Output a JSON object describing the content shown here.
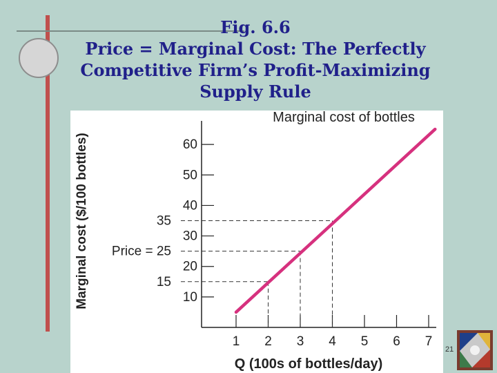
{
  "slide": {
    "title_lines": [
      "Fig. 6.6",
      "Price = Marginal Cost: The Perfectly",
      "Competitive Firm’s Profit-Maximizing",
      "Supply Rule"
    ],
    "page_number": "21"
  },
  "chart_data": {
    "type": "line",
    "title": "",
    "xlabel": "Q (100s of bottles/day)",
    "ylabel": "Marginal cost ($/100 bottles)",
    "x_ticks": [
      "1",
      "2",
      "3",
      "4",
      "5",
      "6",
      "7"
    ],
    "y_ticks": [
      "10",
      "20",
      "30",
      "40",
      "50",
      "60"
    ],
    "xlim": [
      0.3,
      7.3
    ],
    "ylim": [
      0,
      70
    ],
    "series": [
      {
        "name": "Marginal cost of bottles",
        "x": [
          1,
          7.2
        ],
        "y": [
          5,
          65
        ],
        "color": "#d6317e"
      }
    ],
    "annotations": [
      {
        "label": "35",
        "y": 35,
        "x": 4
      },
      {
        "label": "Price = 25",
        "y": 25,
        "x": 3
      },
      {
        "label": "15",
        "y": 15,
        "x": 2
      }
    ]
  }
}
